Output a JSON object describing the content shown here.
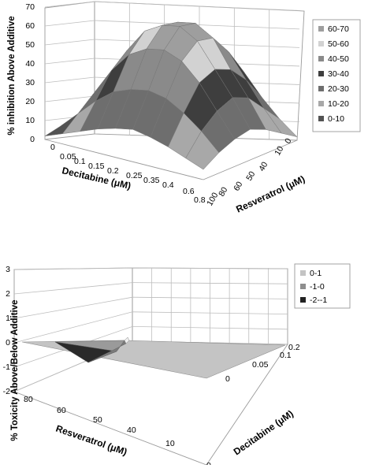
{
  "chart_data": [
    {
      "type": "surface",
      "ylabel": "% inhibition Above Additive",
      "xlabel": "Decitabine (μM)",
      "zlabel": "Resveratrol (μM)",
      "x_ticks": [
        "0",
        "0.05",
        "0.1",
        "0.15",
        "0.2",
        "0.25",
        "0.35",
        "0.4",
        "0.6",
        "0.8"
      ],
      "z_ticks": [
        "0",
        "10",
        "40",
        "50",
        "60",
        "80",
        "100"
      ],
      "ylim": [
        0,
        70
      ],
      "y_ticks": [
        "0",
        "10",
        "20",
        "30",
        "40",
        "50",
        "60",
        "70"
      ],
      "legend_position": "right",
      "legend": [
        {
          "label": "60-70",
          "color": "#9e9e9e"
        },
        {
          "label": "50-60",
          "color": "#d2d2d2"
        },
        {
          "label": "40-50",
          "color": "#8a8a8a"
        },
        {
          "label": "30-40",
          "color": "#3e3e3e"
        },
        {
          "label": "20-30",
          "color": "#6e6e6e"
        },
        {
          "label": "10-20",
          "color": "#a8a8a8"
        },
        {
          "label": "0-10",
          "color": "#525252"
        }
      ],
      "values": [
        [
          2,
          6,
          10,
          14,
          17,
          19,
          17,
          14,
          10,
          6
        ],
        [
          4,
          14,
          24,
          32,
          36,
          38,
          36,
          30,
          22,
          12
        ],
        [
          6,
          22,
          38,
          50,
          56,
          58,
          54,
          44,
          30,
          16
        ],
        [
          6,
          26,
          46,
          60,
          66,
          68,
          62,
          48,
          34,
          18
        ],
        [
          4,
          22,
          42,
          56,
          64,
          66,
          60,
          44,
          30,
          14
        ],
        [
          2,
          14,
          30,
          44,
          52,
          54,
          48,
          34,
          20,
          8
        ],
        [
          0,
          6,
          16,
          28,
          36,
          38,
          32,
          20,
          10,
          2
        ]
      ]
    },
    {
      "type": "surface",
      "ylabel": "% Toxicity Above/Below Additive",
      "xlabel": "Resveratrol (μM)",
      "zlabel": "Decitabine (μM)",
      "x_ticks": [
        "80",
        "60",
        "50",
        "40",
        "10",
        "0"
      ],
      "z_ticks": [
        "0",
        "0.05",
        "0.1",
        "0.2"
      ],
      "ylim": [
        -2,
        3
      ],
      "y_ticks": [
        "-2",
        "-1",
        "0",
        "1",
        "2",
        "3"
      ],
      "legend_position": "right",
      "legend": [
        {
          "label": "0-1",
          "color": "#c4c4c4"
        },
        {
          "label": "-1-0",
          "color": "#8e8e8e"
        },
        {
          "label": "-2--1",
          "color": "#222222"
        }
      ],
      "values": [
        [
          0,
          -1,
          0,
          0,
          0,
          0
        ],
        [
          0,
          0,
          0,
          0,
          0,
          0
        ],
        [
          0,
          0,
          0,
          0,
          0,
          0
        ],
        [
          0,
          0,
          0,
          0,
          0,
          0
        ]
      ]
    }
  ]
}
